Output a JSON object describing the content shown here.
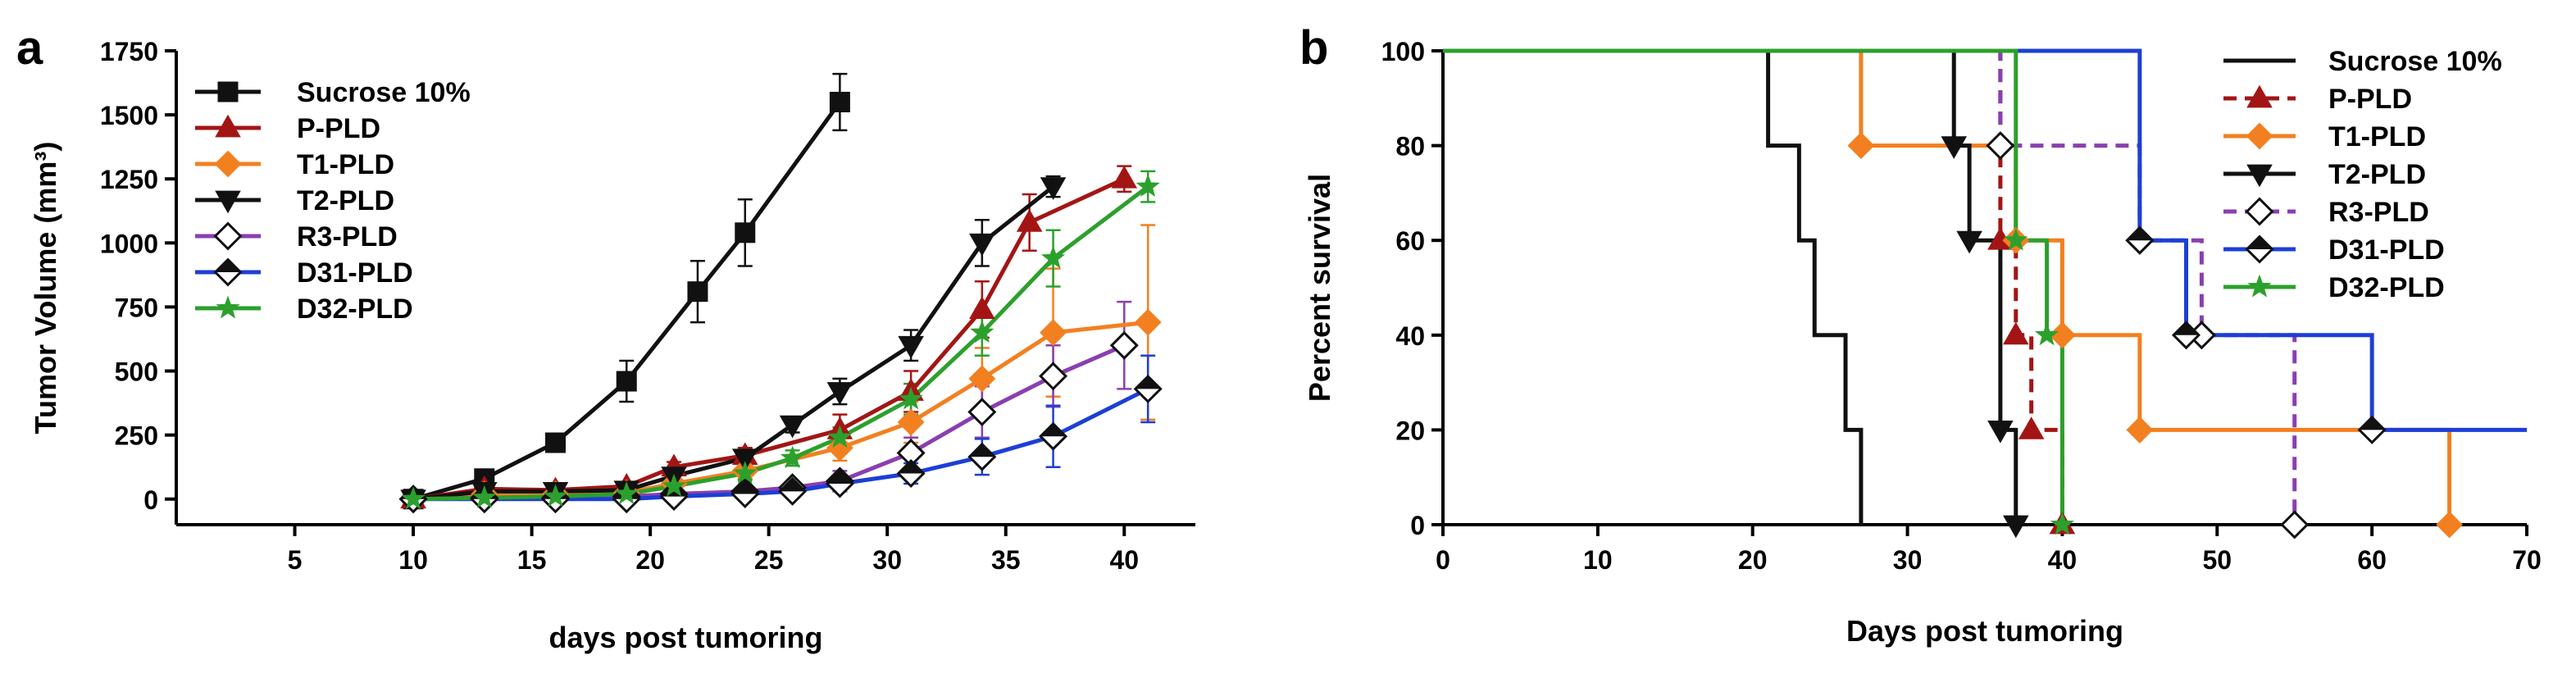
{
  "chart_data": [
    {
      "panel_label": "a",
      "type": "line",
      "xlabel": "days post tumoring",
      "ylabel": "Tumor Volume (mm³)",
      "xlim": [
        0,
        43
      ],
      "ylim": [
        -100,
        1750
      ],
      "xticks": [
        5,
        10,
        15,
        20,
        25,
        30,
        35,
        40
      ],
      "yticks": [
        0,
        250,
        500,
        750,
        1000,
        1250,
        1500,
        1750
      ],
      "grid": false,
      "legend_position": "top-left",
      "series": [
        {
          "name": "Sucrose 10%",
          "color": "#111111",
          "marker": "square",
          "x": [
            10,
            13,
            16,
            19,
            22,
            24,
            28
          ],
          "y": [
            0,
            80,
            220,
            460,
            810,
            1040,
            1550
          ],
          "err": [
            0,
            20,
            30,
            80,
            120,
            130,
            110
          ]
        },
        {
          "name": "P-PLD",
          "color": "#a31515",
          "marker": "triangle-up",
          "x": [
            10,
            13,
            16,
            19,
            21,
            24,
            28,
            31,
            34,
            36,
            40
          ],
          "y": [
            0,
            40,
            35,
            50,
            125,
            170,
            270,
            420,
            740,
            1080,
            1250
          ],
          "err": [
            0,
            10,
            10,
            15,
            20,
            30,
            60,
            80,
            110,
            110,
            50
          ]
        },
        {
          "name": "T1-PLD",
          "color": "#f28020",
          "marker": "diamond",
          "x": [
            10,
            13,
            16,
            19,
            21,
            24,
            28,
            31,
            34,
            37,
            41
          ],
          "y": [
            0,
            20,
            20,
            25,
            60,
            110,
            200,
            300,
            470,
            650,
            690
          ],
          "err": [
            0,
            10,
            10,
            10,
            15,
            30,
            50,
            80,
            120,
            250,
            380
          ]
        },
        {
          "name": "T2-PLD",
          "color": "#111111",
          "marker": "triangle-down",
          "x": [
            10,
            13,
            16,
            19,
            21,
            24,
            26,
            28,
            31,
            34,
            37
          ],
          "y": [
            0,
            30,
            30,
            35,
            90,
            160,
            290,
            420,
            600,
            1000,
            1220
          ],
          "err": [
            0,
            10,
            10,
            10,
            20,
            25,
            30,
            50,
            60,
            90,
            40
          ]
        },
        {
          "name": "R3-PLD",
          "color": "#8a3fb0",
          "marker": "diamond-open",
          "x": [
            10,
            13,
            16,
            19,
            21,
            24,
            26,
            28,
            31,
            34,
            37,
            40
          ],
          "y": [
            0,
            5,
            5,
            10,
            20,
            30,
            45,
            70,
            180,
            340,
            480,
            600
          ],
          "err": [
            0,
            5,
            5,
            5,
            10,
            15,
            20,
            40,
            60,
            100,
            120,
            170
          ]
        },
        {
          "name": "D31-PLD",
          "color": "#1c3fd6",
          "marker": "diamond-half",
          "x": [
            10,
            13,
            16,
            19,
            21,
            24,
            26,
            28,
            31,
            34,
            37,
            41
          ],
          "y": [
            0,
            0,
            0,
            0,
            10,
            20,
            30,
            60,
            100,
            165,
            245,
            430
          ],
          "err": [
            0,
            5,
            5,
            5,
            5,
            10,
            15,
            20,
            40,
            70,
            120,
            130
          ]
        },
        {
          "name": "D32-PLD",
          "color": "#2ca02c",
          "marker": "star",
          "x": [
            10,
            13,
            16,
            19,
            21,
            24,
            26,
            28,
            31,
            34,
            37,
            41
          ],
          "y": [
            0,
            5,
            10,
            20,
            50,
            100,
            160,
            240,
            390,
            650,
            940,
            1220
          ],
          "err": [
            0,
            5,
            5,
            10,
            15,
            25,
            30,
            40,
            60,
            90,
            110,
            60
          ]
        }
      ]
    },
    {
      "panel_label": "b",
      "type": "line",
      "subtype": "kaplan-meier step",
      "xlabel": "Days post tumoring",
      "ylabel": "Percent survival",
      "xlim": [
        0,
        70
      ],
      "ylim": [
        0,
        100
      ],
      "xticks": [
        0,
        10,
        20,
        30,
        40,
        50,
        60,
        70
      ],
      "yticks": [
        0,
        20,
        40,
        60,
        80,
        100
      ],
      "grid": false,
      "legend_position": "top-right",
      "series": [
        {
          "name": "Sucrose 10%",
          "color": "#111111",
          "dash": "solid",
          "marker": "none",
          "steps": [
            [
              0,
              100
            ],
            [
              21,
              80
            ],
            [
              23,
              60
            ],
            [
              24,
              40
            ],
            [
              26,
              20
            ],
            [
              27,
              0
            ]
          ],
          "x_end": 27
        },
        {
          "name": "P-PLD",
          "color": "#a31515",
          "dash": "dashed",
          "marker": "triangle-up",
          "steps": [
            [
              0,
              100
            ],
            [
              36,
              60
            ],
            [
              37,
              40
            ],
            [
              38,
              20
            ],
            [
              40,
              0
            ]
          ],
          "x_end": 40
        },
        {
          "name": "T1-PLD",
          "color": "#f28020",
          "dash": "solid",
          "marker": "diamond",
          "steps": [
            [
              0,
              100
            ],
            [
              27,
              80
            ],
            [
              37,
              60
            ],
            [
              40,
              40
            ],
            [
              45,
              20
            ],
            [
              65,
              0
            ]
          ],
          "x_end": 65
        },
        {
          "name": "T2-PLD",
          "color": "#111111",
          "dash": "solid",
          "marker": "triangle-down",
          "steps": [
            [
              0,
              100
            ],
            [
              33,
              80
            ],
            [
              34,
              60
            ],
            [
              36,
              20
            ],
            [
              37,
              0
            ]
          ],
          "x_end": 37
        },
        {
          "name": "R3-PLD",
          "color": "#8a3fb0",
          "dash": "dashed",
          "marker": "diamond-open",
          "steps": [
            [
              0,
              100
            ],
            [
              36,
              80
            ],
            [
              45,
              60
            ],
            [
              49,
              40
            ],
            [
              55,
              0
            ]
          ],
          "x_end": 55
        },
        {
          "name": "D31-PLD",
          "color": "#1c3fd6",
          "dash": "solid",
          "marker": "diamond-half",
          "steps": [
            [
              0,
              100
            ],
            [
              45,
              60
            ],
            [
              48,
              40
            ],
            [
              60,
              20
            ]
          ],
          "x_end": 70
        },
        {
          "name": "D32-PLD",
          "color": "#2ca02c",
          "dash": "solid",
          "marker": "star",
          "steps": [
            [
              0,
              100
            ],
            [
              37,
              60
            ],
            [
              39,
              40
            ],
            [
              40,
              0
            ]
          ],
          "x_end": 40
        }
      ]
    }
  ]
}
